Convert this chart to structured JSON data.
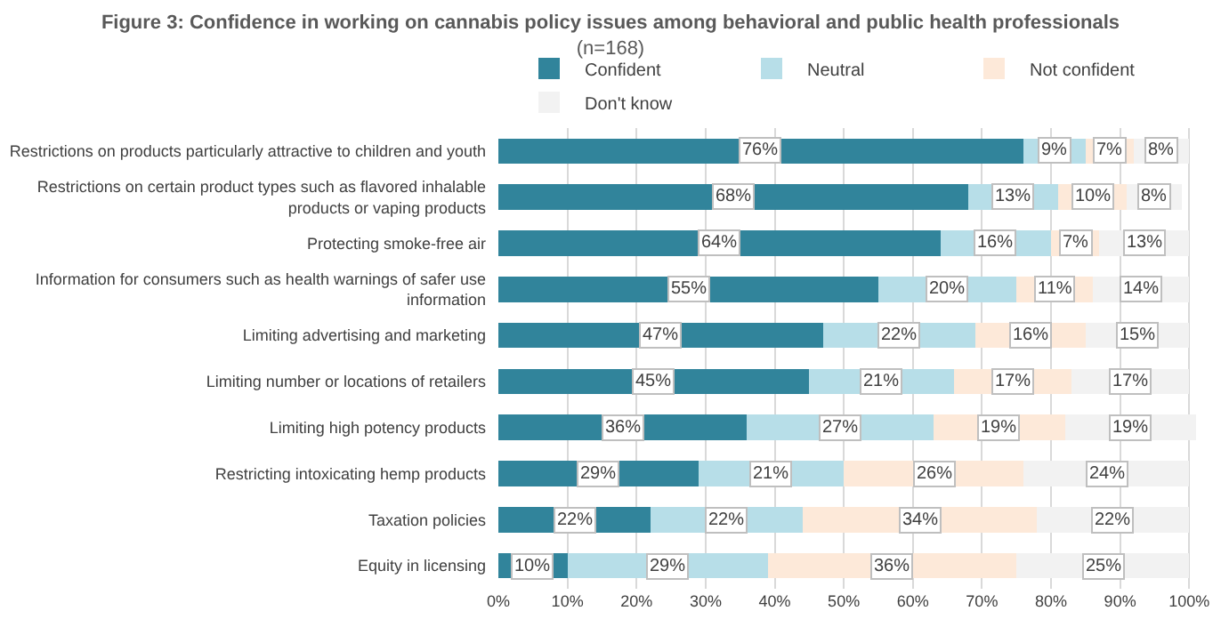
{
  "chart_data": {
    "type": "bar",
    "orientation": "horizontal",
    "stacked": true,
    "title": "Figure 3: Confidence in working on cannabis policy issues among behavioral and public health professionals",
    "subtitle": "(n=168)",
    "categories": [
      "Restrictions on products particularly attractive to children and youth",
      "Restrictions on certain product types such as flavored inhalable products or vaping products",
      "Protecting smoke-free air",
      "Information for consumers such as health warnings of safer use information",
      "Limiting advertising and marketing",
      "Limiting number or locations of retailers",
      "Limiting high potency products",
      "Restricting intoxicating hemp products",
      "Taxation policies",
      "Equity in licensing"
    ],
    "series": [
      {
        "name": "Confident",
        "color": "#31849b",
        "values": [
          76,
          68,
          64,
          55,
          47,
          45,
          36,
          29,
          22,
          10
        ],
        "value_labels": [
          "76%",
          "68%",
          "64%",
          "55%",
          "47%",
          "45%",
          "36%",
          "29%",
          "22%",
          "10%"
        ]
      },
      {
        "name": "Neutral",
        "color": "#b7dee8",
        "values": [
          9,
          13,
          16,
          20,
          22,
          21,
          27,
          21,
          22,
          29
        ],
        "value_labels": [
          "9%",
          "13%",
          "16%",
          "20%",
          "22%",
          "21%",
          "27%",
          "21%",
          "22%",
          "29%"
        ]
      },
      {
        "name": "Not confident",
        "color": "#fde9d9",
        "values": [
          7,
          10,
          7,
          11,
          16,
          17,
          19,
          26,
          34,
          36
        ],
        "value_labels": [
          "7%",
          "10%",
          "7%",
          "11%",
          "16%",
          "17%",
          "19%",
          "26%",
          "34%",
          "36%"
        ]
      },
      {
        "name": "Don't know",
        "color": "#f2f2f2",
        "values": [
          8,
          8,
          13,
          14,
          15,
          17,
          19,
          24,
          22,
          25
        ],
        "value_labels": [
          "8%",
          "8%",
          "13%",
          "14%",
          "15%",
          "17%",
          "19%",
          "24%",
          "22%",
          "25%"
        ]
      }
    ],
    "xlim": [
      0,
      101
    ],
    "xticks": [
      {
        "value": 0,
        "label": "0%"
      },
      {
        "value": 10,
        "label": "10%"
      },
      {
        "value": 20,
        "label": "20%"
      },
      {
        "value": 30,
        "label": "30%"
      },
      {
        "value": 40,
        "label": "40%"
      },
      {
        "value": 50,
        "label": "50%"
      },
      {
        "value": 60,
        "label": "60%"
      },
      {
        "value": 70,
        "label": "70%"
      },
      {
        "value": 80,
        "label": "80%"
      },
      {
        "value": 90,
        "label": "90%"
      },
      {
        "value": 100,
        "label": "100%"
      }
    ],
    "grid": "x",
    "legend": "top"
  }
}
